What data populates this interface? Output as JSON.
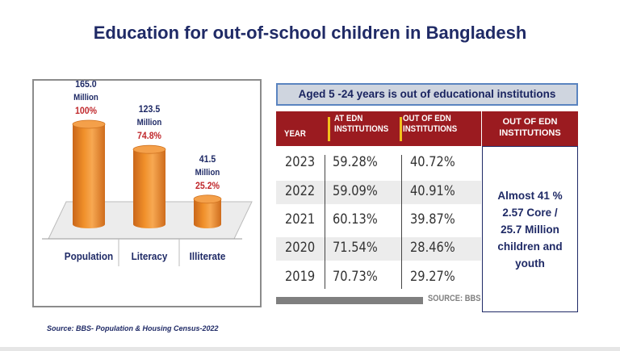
{
  "title": "Education for out-of-school children in Bangladesh",
  "chart_data": {
    "type": "bar",
    "categories": [
      "Population",
      "Literacy",
      "Illiterate"
    ],
    "values": [
      165.0,
      123.5,
      41.5
    ],
    "value_labels": [
      "165.0",
      "123.5",
      "41.5"
    ],
    "unit_label": "Million",
    "percent_labels": [
      "100%",
      "74.8%",
      "25.2%"
    ],
    "percents": [
      100,
      74.8,
      25.2
    ],
    "bar_color": "#f0902a",
    "percent_color": "#c0282c",
    "value_color": "#1f2a66"
  },
  "table": {
    "banner": "Aged 5 -24 years is out of educational institutions",
    "headers": {
      "year": "YEAR",
      "at_line1": "AT EDN",
      "at_line2": "INSTITUTIONS",
      "out_line1": "OUT OF EDN",
      "out_line2": "INSTITUTIONS"
    },
    "rows": [
      {
        "year": "2023",
        "at": "59.28%",
        "out": "40.72%"
      },
      {
        "year": "2022",
        "at": "59.09%",
        "out": "40.91%"
      },
      {
        "year": "2021",
        "at": "60.13%",
        "out": "39.87%"
      },
      {
        "year": "2020",
        "at": "71.54%",
        "out": "28.46%"
      },
      {
        "year": "2019",
        "at": "70.73%",
        "out": "29.27%"
      }
    ],
    "source_label": "SOURCE: BBS",
    "header_color": "#9b1b20",
    "accent_color": "#f2c21b"
  },
  "side_panel": {
    "header_line1": "OUT OF EDN",
    "header_line2": "INSTITUTIONS",
    "text_line1": "Almost 41 %",
    "text_line2": "2.57 Core /",
    "text_line3": "25.7 Million",
    "text_line4": "children and",
    "text_line5": "youth"
  },
  "footer": {
    "source": "Source: BBS- Population & Housing Census-2022"
  }
}
